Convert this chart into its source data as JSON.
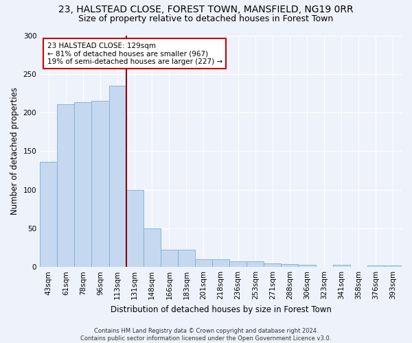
{
  "title_line1": "23, HALSTEAD CLOSE, FOREST TOWN, MANSFIELD, NG19 0RR",
  "title_line2": "Size of property relative to detached houses in Forest Town",
  "xlabel": "Distribution of detached houses by size in Forest Town",
  "ylabel": "Number of detached properties",
  "footnote": "Contains HM Land Registry data © Crown copyright and database right 2024.\nContains public sector information licensed under the Open Government Licence v3.0.",
  "categories": [
    "43sqm",
    "61sqm",
    "78sqm",
    "96sqm",
    "113sqm",
    "131sqm",
    "148sqm",
    "166sqm",
    "183sqm",
    "201sqm",
    "218sqm",
    "236sqm",
    "253sqm",
    "271sqm",
    "288sqm",
    "306sqm",
    "323sqm",
    "341sqm",
    "358sqm",
    "376sqm",
    "393sqm"
  ],
  "values": [
    136,
    211,
    213,
    215,
    235,
    100,
    50,
    22,
    22,
    10,
    10,
    7,
    7,
    5,
    4,
    3,
    0,
    3,
    0,
    2,
    2
  ],
  "bar_color": "#c5d8f0",
  "bar_edge_color": "#7aadd4",
  "red_line_x": 4.5,
  "annotation_text_line1": "23 HALSTEAD CLOSE: 129sqm",
  "annotation_text_line2": "← 81% of detached houses are smaller (967)",
  "annotation_text_line3": "19% of semi-detached houses are larger (227) →",
  "ylim": [
    0,
    300
  ],
  "yticks": [
    0,
    50,
    100,
    150,
    200,
    250,
    300
  ],
  "background_color": "#eef2fa",
  "grid_color": "#ffffff",
  "title_fontsize": 10,
  "subtitle_fontsize": 9,
  "axis_label_fontsize": 8.5,
  "tick_fontsize": 7.5,
  "annotation_fontsize": 7.5
}
